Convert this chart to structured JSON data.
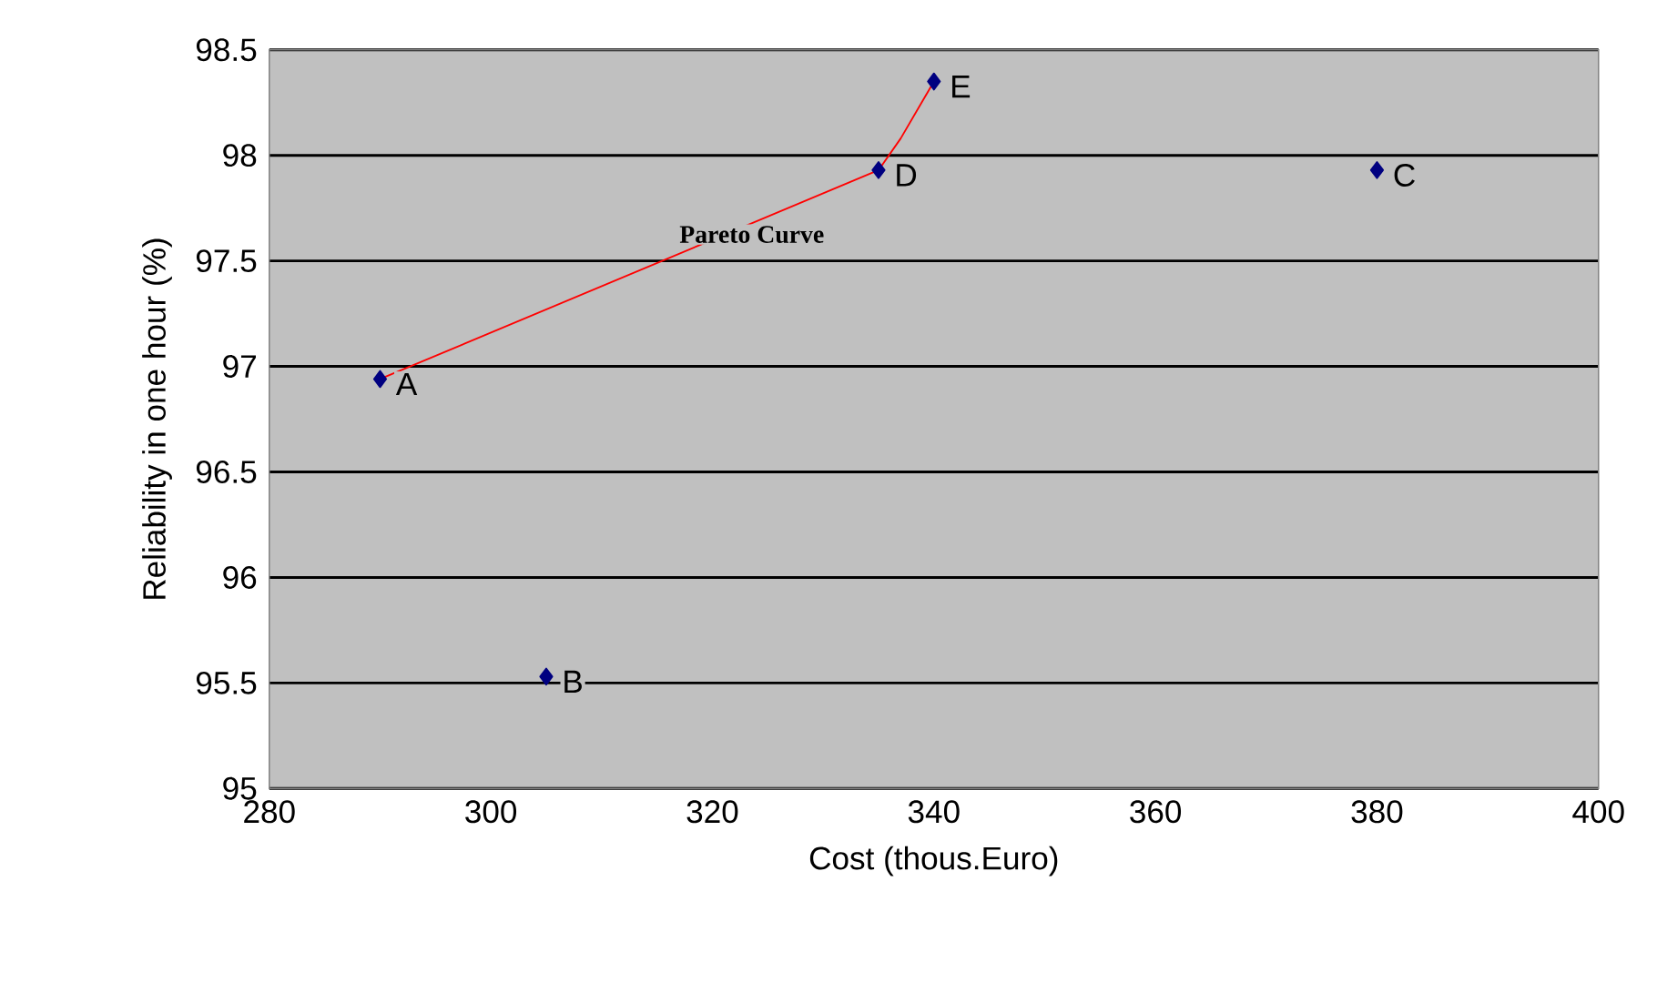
{
  "chart_data": {
    "type": "scatter",
    "xlabel": "Cost (thous.Euro)",
    "ylabel": "Reliability in one hour (%)",
    "xlim": [
      280,
      400
    ],
    "xticks": [
      280,
      300,
      320,
      340,
      360,
      380,
      400
    ],
    "ylim": [
      95,
      98.5
    ],
    "yticks": [
      95,
      95.5,
      96,
      96.5,
      97,
      97.5,
      98,
      98.5
    ],
    "grid": "y",
    "series": [
      {
        "type": "line",
        "color": "#ff0000",
        "marker": "none",
        "x": [
          290,
          335,
          337,
          340
        ],
        "values": [
          96.94,
          97.93,
          98.08,
          98.35
        ]
      },
      {
        "color": "#000080",
        "marker": "diamond",
        "x": [
          290,
          305,
          380,
          335,
          340
        ],
        "values": [
          96.94,
          95.53,
          97.93,
          97.93,
          98.35
        ]
      }
    ],
    "annotations": [
      {
        "text": "A",
        "x": 290,
        "y": 96.94
      },
      {
        "text": "B",
        "x": 305,
        "y": 95.53
      },
      {
        "text": "C",
        "x": 380,
        "y": 97.93
      },
      {
        "text": "D",
        "x": 335,
        "y": 97.93
      },
      {
        "text": "E",
        "x": 340,
        "y": 98.35
      },
      "Pareto Curve"
    ]
  }
}
